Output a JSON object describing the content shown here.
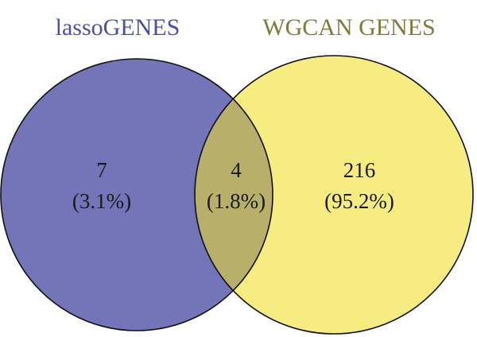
{
  "diagram": {
    "type": "venn",
    "sets": [
      {
        "name": "lassoGENES",
        "color": "#7474b8",
        "label_color": "#4a4fa8"
      },
      {
        "name": "WGCAN GENES",
        "color": "#f7ec82",
        "label_color": "#7f7b3a"
      }
    ],
    "overlap_color": "#b8b06a",
    "outline_color": "#111111",
    "regions": {
      "left_only": {
        "count": "7",
        "percent": "(3.1%)"
      },
      "both": {
        "count": "4",
        "percent": "(1.8%)"
      },
      "right_only": {
        "count": "216",
        "percent": "(95.2%)"
      }
    }
  }
}
